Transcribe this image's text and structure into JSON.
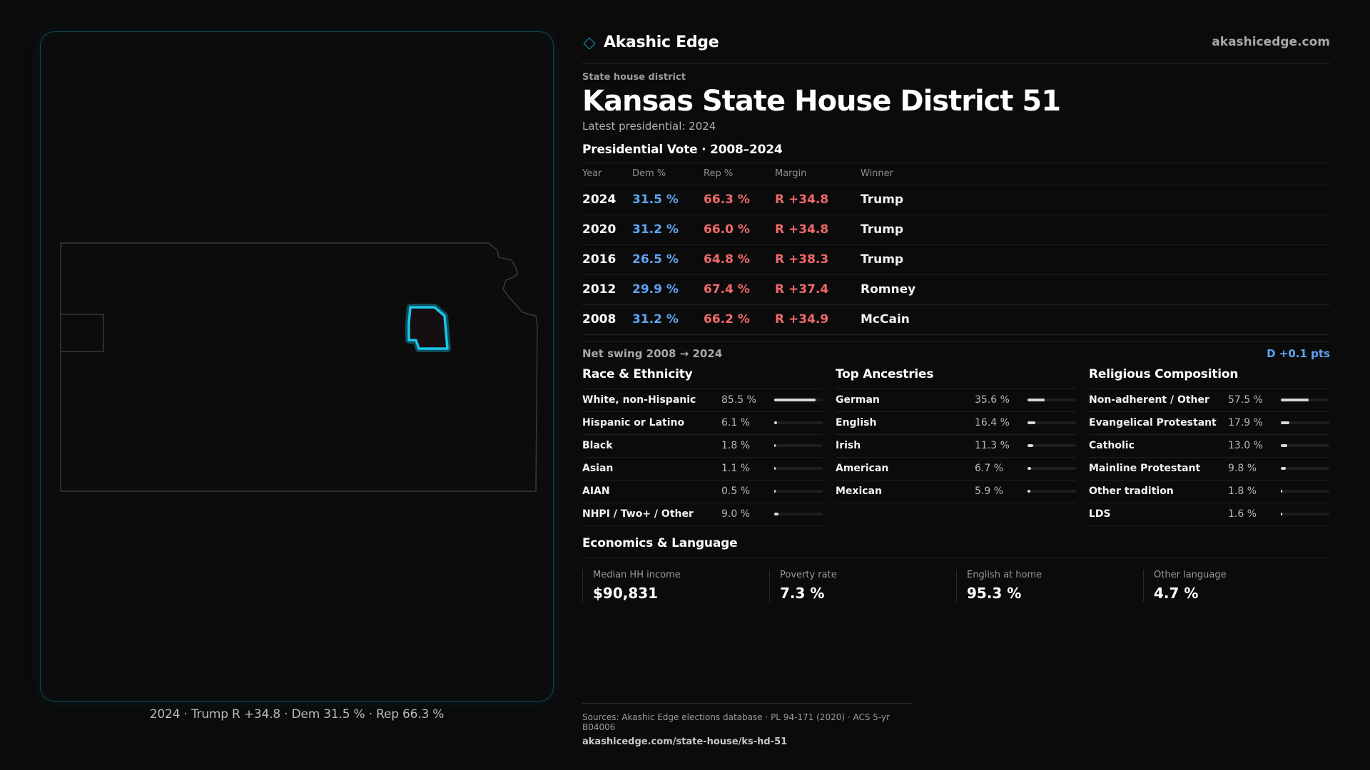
{
  "map": {
    "caption": "2024 · Trump R +34.8 · Dem 31.5 % · Rep 66.3 %",
    "highlight_color": "#19c6ea",
    "outline_color": "#3a3a3a"
  },
  "header": {
    "brand": "Akashic Edge",
    "site": "akashicedge.com"
  },
  "district": {
    "kicker": "State house district",
    "title": "Kansas State House District 51",
    "latest": "Latest presidential: 2024"
  },
  "presidential": {
    "title": "Presidential Vote · 2008–2024",
    "columns": [
      "Year",
      "Dem %",
      "Rep %",
      "Margin",
      "Winner"
    ],
    "rows": [
      {
        "year": "2024",
        "dem": "31.5 %",
        "rep": "66.3 %",
        "margin": "R +34.8",
        "winner": "Trump"
      },
      {
        "year": "2020",
        "dem": "31.2 %",
        "rep": "66.0 %",
        "margin": "R +34.8",
        "winner": "Trump"
      },
      {
        "year": "2016",
        "dem": "26.5 %",
        "rep": "64.8 %",
        "margin": "R +38.3",
        "winner": "Trump"
      },
      {
        "year": "2012",
        "dem": "29.9 %",
        "rep": "67.4 %",
        "margin": "R +37.4",
        "winner": "Romney"
      },
      {
        "year": "2008",
        "dem": "31.2 %",
        "rep": "66.2 %",
        "margin": "R +34.9",
        "winner": "McCain"
      }
    ],
    "swing_label": "Net swing 2008 → 2024",
    "swing_value": "D +0.1 pts",
    "dem_color": "#5fa4f4",
    "rep_color": "#f06a6a"
  },
  "race": {
    "title": "Race & Ethnicity",
    "items": [
      {
        "label": "White, non-Hispanic",
        "pct": "85.5 %",
        "value": 85.5
      },
      {
        "label": "Hispanic or Latino",
        "pct": "6.1 %",
        "value": 6.1
      },
      {
        "label": "Black",
        "pct": "1.8 %",
        "value": 1.8
      },
      {
        "label": "Asian",
        "pct": "1.1 %",
        "value": 1.1
      },
      {
        "label": "AIAN",
        "pct": "0.5 %",
        "value": 0.5
      },
      {
        "label": "NHPI / Two+ / Other",
        "pct": "9.0 %",
        "value": 9.0
      }
    ]
  },
  "ancestry": {
    "title": "Top Ancestries",
    "items": [
      {
        "label": "German",
        "pct": "35.6 %",
        "value": 35.6
      },
      {
        "label": "English",
        "pct": "16.4 %",
        "value": 16.4
      },
      {
        "label": "Irish",
        "pct": "11.3 %",
        "value": 11.3
      },
      {
        "label": "American",
        "pct": "6.7 %",
        "value": 6.7
      },
      {
        "label": "Mexican",
        "pct": "5.9 %",
        "value": 5.9
      }
    ]
  },
  "religion": {
    "title": "Religious Composition",
    "items": [
      {
        "label": "Non-adherent / Other",
        "pct": "57.5 %",
        "value": 57.5
      },
      {
        "label": "Evangelical Protestant",
        "pct": "17.9 %",
        "value": 17.9
      },
      {
        "label": "Catholic",
        "pct": "13.0 %",
        "value": 13.0
      },
      {
        "label": "Mainline Protestant",
        "pct": "9.8 %",
        "value": 9.8
      },
      {
        "label": "Other tradition",
        "pct": "1.8 %",
        "value": 1.8
      },
      {
        "label": "LDS",
        "pct": "1.6 %",
        "value": 1.6
      }
    ]
  },
  "economics": {
    "title": "Economics & Language",
    "cards": [
      {
        "label": "Median HH income",
        "value": "$90,831"
      },
      {
        "label": "Poverty rate",
        "value": "7.3 %"
      },
      {
        "label": "English at home",
        "value": "95.3 %"
      },
      {
        "label": "Other language",
        "value": "4.7 %"
      }
    ]
  },
  "footer": {
    "sources": "Sources: Akashic Edge elections database · PL 94-171 (2020) · ACS 5-yr B04006",
    "url": "akashicedge.com/state-house/ks-hd-51"
  }
}
